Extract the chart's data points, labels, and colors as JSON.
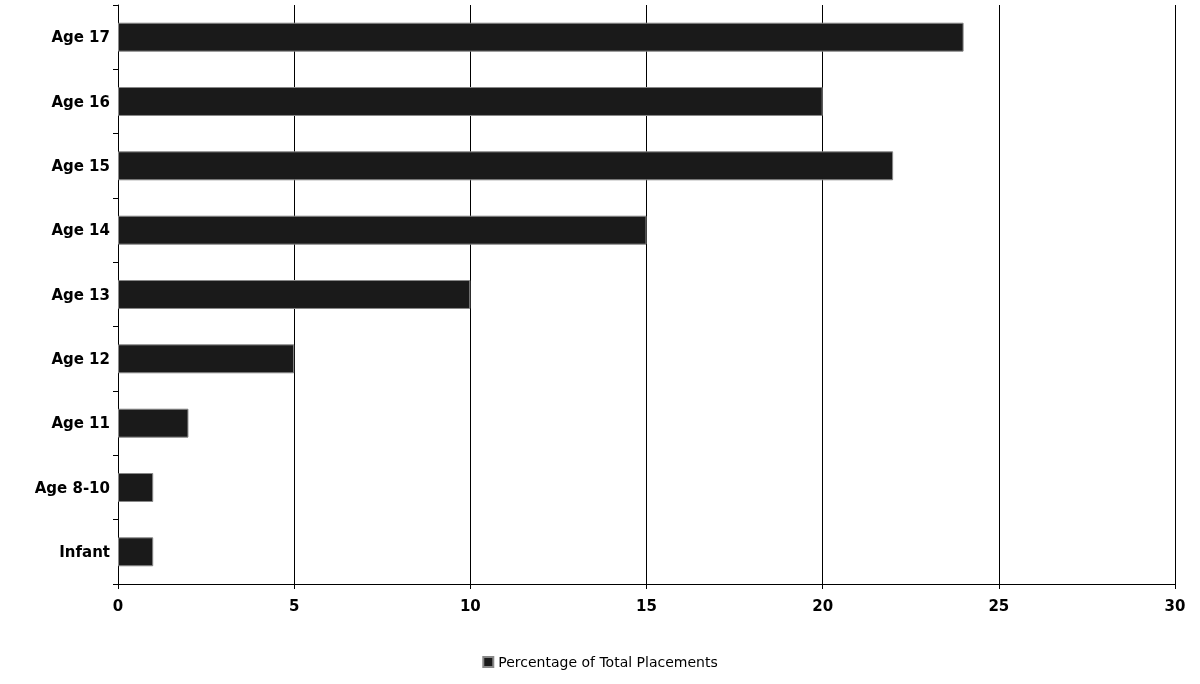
{
  "chart_data": {
    "type": "bar",
    "orientation": "horizontal",
    "categories": [
      "Age 17",
      "Age 16",
      "Age 15",
      "Age 14",
      "Age 13",
      "Age 12",
      "Age 11",
      "Age 8-10",
      "Infant"
    ],
    "series": [
      {
        "name": "Percentage of Total Placements",
        "color": "#1a1a1a",
        "values": [
          24,
          20,
          22,
          15,
          10,
          5,
          2,
          1,
          1
        ]
      }
    ],
    "xlim": [
      0,
      30
    ],
    "xticks": [
      0,
      5,
      10,
      15,
      20,
      25,
      30
    ],
    "grid": "x",
    "legend": "bottom"
  }
}
